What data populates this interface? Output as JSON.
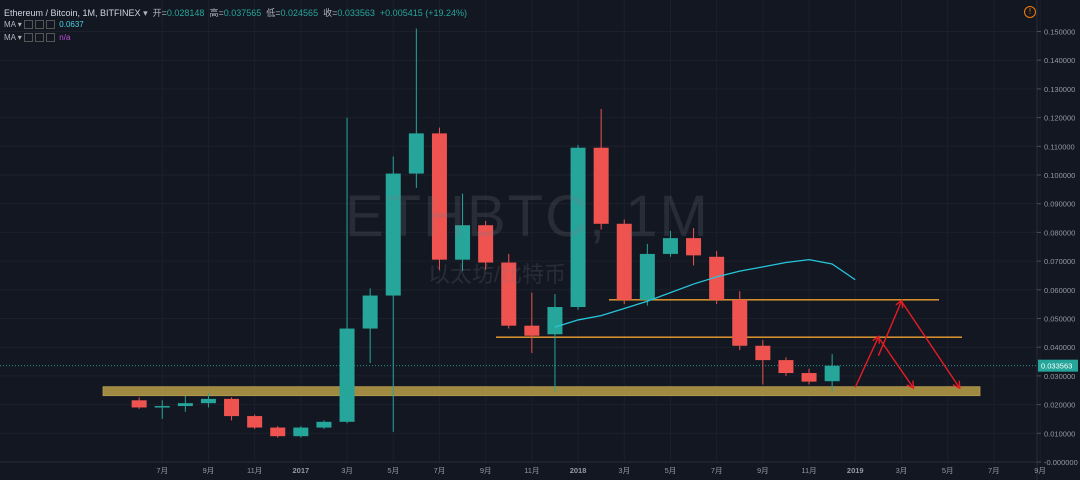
{
  "header": {
    "symbol": "Ethereum / Bitcoin, 1M, BITFINEX",
    "open_label": "开=",
    "open_value": "0.028148",
    "high_label": "高=",
    "high_value": "0.037565",
    "low_label": "低=",
    "low_value": "0.024565",
    "close_label": "收=",
    "close_value": "0.033563",
    "change": "+0.005415 (+19.24%)"
  },
  "indicators": [
    {
      "label": "MA",
      "value": "0.0637",
      "color": "#4dd0e1"
    },
    {
      "label": "MA",
      "value": "n/a",
      "color": "#c04fd8"
    }
  ],
  "watermark": {
    "symbol": "ETHBTC, 1M",
    "name": "以太坊/比特币"
  },
  "price_label": "0.033563",
  "colors": {
    "up": "#26a69a",
    "down": "#ef5350",
    "background": "#131722",
    "support": "#c8a94a",
    "resistance": "#f0a030",
    "arrow": "#e51c23",
    "ma": "#26c6da"
  },
  "chart_data": {
    "type": "candlestick",
    "ylim": [
      0,
      0.155
    ],
    "y_ticks": [
      "0.000000",
      "0.010000",
      "0.020000",
      "0.030000",
      "0.040000",
      "0.050000",
      "0.060000",
      "0.070000",
      "0.080000",
      "0.090000",
      "0.100000",
      "0.110000",
      "0.120000",
      "0.130000",
      "0.140000",
      "0.150000"
    ],
    "x_ticks": [
      {
        "label": "7月",
        "month": 4
      },
      {
        "label": "9月",
        "month": 6
      },
      {
        "label": "11月",
        "month": 8
      },
      {
        "label": "2017",
        "month": 10
      },
      {
        "label": "3月",
        "month": 12
      },
      {
        "label": "5月",
        "month": 14
      },
      {
        "label": "7月",
        "month": 16
      },
      {
        "label": "9月",
        "month": 18
      },
      {
        "label": "11月",
        "month": 20
      },
      {
        "label": "2018",
        "month": 22
      },
      {
        "label": "3月",
        "month": 24
      },
      {
        "label": "5月",
        "month": 26
      },
      {
        "label": "7月",
        "month": 28
      },
      {
        "label": "9月",
        "month": 30
      },
      {
        "label": "11月",
        "month": 32
      },
      {
        "label": "2019",
        "month": 34
      },
      {
        "label": "3月",
        "month": 36
      },
      {
        "label": "5月",
        "month": 38
      },
      {
        "label": "7月",
        "month": 40
      },
      {
        "label": "9月",
        "month": 42
      }
    ],
    "candles": [
      {
        "month": 3,
        "o": 0.0215,
        "h": 0.0225,
        "l": 0.0185,
        "c": 0.019
      },
      {
        "month": 4,
        "o": 0.019,
        "h": 0.0215,
        "l": 0.015,
        "c": 0.0195
      },
      {
        "month": 5,
        "o": 0.0195,
        "h": 0.023,
        "l": 0.0175,
        "c": 0.0205
      },
      {
        "month": 6,
        "o": 0.0205,
        "h": 0.024,
        "l": 0.019,
        "c": 0.022
      },
      {
        "month": 7,
        "o": 0.022,
        "h": 0.0225,
        "l": 0.0145,
        "c": 0.016
      },
      {
        "month": 8,
        "o": 0.016,
        "h": 0.0165,
        "l": 0.0115,
        "c": 0.012
      },
      {
        "month": 9,
        "o": 0.012,
        "h": 0.0125,
        "l": 0.0085,
        "c": 0.009
      },
      {
        "month": 10,
        "o": 0.009,
        "h": 0.0125,
        "l": 0.0085,
        "c": 0.012
      },
      {
        "month": 11,
        "o": 0.012,
        "h": 0.0145,
        "l": 0.0115,
        "c": 0.014
      },
      {
        "month": 12,
        "o": 0.014,
        "h": 0.12,
        "l": 0.0135,
        "c": 0.0465
      },
      {
        "month": 13,
        "o": 0.0465,
        "h": 0.0605,
        "l": 0.0345,
        "c": 0.058
      },
      {
        "month": 14,
        "o": 0.058,
        "h": 0.1065,
        "l": 0.0105,
        "c": 0.1005
      },
      {
        "month": 15,
        "o": 0.1005,
        "h": 0.151,
        "l": 0.0955,
        "c": 0.1145
      },
      {
        "month": 16,
        "o": 0.1145,
        "h": 0.1165,
        "l": 0.067,
        "c": 0.0705
      },
      {
        "month": 17,
        "o": 0.0705,
        "h": 0.0935,
        "l": 0.0665,
        "c": 0.0825
      },
      {
        "month": 18,
        "o": 0.0825,
        "h": 0.084,
        "l": 0.067,
        "c": 0.0695
      },
      {
        "month": 19,
        "o": 0.0695,
        "h": 0.0725,
        "l": 0.0465,
        "c": 0.0475
      },
      {
        "month": 20,
        "o": 0.0475,
        "h": 0.059,
        "l": 0.038,
        "c": 0.044
      },
      {
        "month": 21,
        "o": 0.0445,
        "h": 0.0585,
        "l": 0.0245,
        "c": 0.054
      },
      {
        "month": 22,
        "o": 0.054,
        "h": 0.1105,
        "l": 0.053,
        "c": 0.1095
      },
      {
        "month": 23,
        "o": 0.1095,
        "h": 0.123,
        "l": 0.081,
        "c": 0.083
      },
      {
        "month": 24,
        "o": 0.083,
        "h": 0.0845,
        "l": 0.055,
        "c": 0.0565
      },
      {
        "month": 25,
        "o": 0.0565,
        "h": 0.076,
        "l": 0.0545,
        "c": 0.0725
      },
      {
        "month": 26,
        "o": 0.0725,
        "h": 0.0805,
        "l": 0.0715,
        "c": 0.078
      },
      {
        "month": 27,
        "o": 0.078,
        "h": 0.0815,
        "l": 0.0685,
        "c": 0.072
      },
      {
        "month": 28,
        "o": 0.0715,
        "h": 0.0735,
        "l": 0.055,
        "c": 0.0565
      },
      {
        "month": 29,
        "o": 0.0565,
        "h": 0.0595,
        "l": 0.039,
        "c": 0.0405
      },
      {
        "month": 30,
        "o": 0.0405,
        "h": 0.0425,
        "l": 0.027,
        "c": 0.0355
      },
      {
        "month": 31,
        "o": 0.0355,
        "h": 0.0365,
        "l": 0.03,
        "c": 0.031
      },
      {
        "month": 32,
        "o": 0.031,
        "h": 0.0325,
        "l": 0.027,
        "c": 0.028
      },
      {
        "month": 33,
        "o": 0.028148,
        "h": 0.037565,
        "l": 0.024565,
        "c": 0.033563
      }
    ],
    "ma_series": [
      {
        "month": 21,
        "v": 0.047
      },
      {
        "month": 22,
        "v": 0.0495
      },
      {
        "month": 23,
        "v": 0.051
      },
      {
        "month": 24,
        "v": 0.0535
      },
      {
        "month": 25,
        "v": 0.056
      },
      {
        "month": 26,
        "v": 0.059
      },
      {
        "month": 27,
        "v": 0.062
      },
      {
        "month": 28,
        "v": 0.0645
      },
      {
        "month": 29,
        "v": 0.0665
      },
      {
        "month": 30,
        "v": 0.068
      },
      {
        "month": 31,
        "v": 0.0695
      },
      {
        "month": 32,
        "v": 0.0705
      },
      {
        "month": 33,
        "v": 0.069
      },
      {
        "month": 34,
        "v": 0.0635
      }
    ],
    "horizontal_lines": [
      {
        "kind": "support-band",
        "y": 0.0245,
        "from_month": 0,
        "to_month": 39
      },
      {
        "kind": "resistance",
        "y": 0.0565,
        "from_month": 24,
        "to_month": 37
      },
      {
        "kind": "resistance",
        "y": 0.0435,
        "from_month": 19,
        "to_month": 39
      }
    ],
    "arrows": [
      {
        "from": [
          34,
          0.026
        ],
        "to": [
          35,
          0.0435
        ]
      },
      {
        "from": [
          35,
          0.0435
        ],
        "to": [
          36.5,
          0.026
        ]
      },
      {
        "from": [
          35,
          0.037
        ],
        "to": [
          36,
          0.056
        ]
      },
      {
        "from": [
          36,
          0.056
        ],
        "to": [
          38.5,
          0.026
        ]
      }
    ]
  }
}
